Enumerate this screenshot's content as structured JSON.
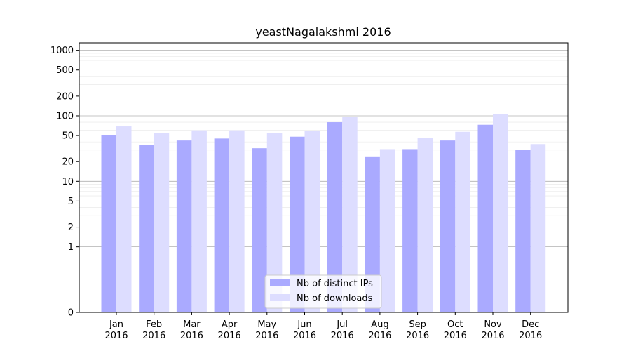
{
  "chart_data": {
    "type": "bar",
    "title": "yeastNagalakshmi 2016",
    "xlabel": "",
    "ylabel": "",
    "yscale": "symlog",
    "ylim": [
      0,
      1300
    ],
    "categories": [
      [
        "Jan",
        "2016"
      ],
      [
        "Feb",
        "2016"
      ],
      [
        "Mar",
        "2016"
      ],
      [
        "Apr",
        "2016"
      ],
      [
        "May",
        "2016"
      ],
      [
        "Jun",
        "2016"
      ],
      [
        "Jul",
        "2016"
      ],
      [
        "Aug",
        "2016"
      ],
      [
        "Sep",
        "2016"
      ],
      [
        "Oct",
        "2016"
      ],
      [
        "Nov",
        "2016"
      ],
      [
        "Dec",
        "2016"
      ]
    ],
    "yticks": [
      0,
      1,
      2,
      5,
      10,
      20,
      50,
      100,
      200,
      500,
      1000
    ],
    "ytick_labels": [
      "0",
      "1",
      "2",
      "5",
      "10",
      "20",
      "50",
      "100",
      "200",
      "500",
      "1000"
    ],
    "series": [
      {
        "name": "Nb of distinct IPs",
        "color": "#aaaaff",
        "values": [
          51,
          36,
          42,
          45,
          32,
          48,
          80,
          24,
          31,
          42,
          73,
          30
        ]
      },
      {
        "name": "Nb of downloads",
        "color": "#ddddff",
        "values": [
          69,
          55,
          60,
          60,
          54,
          59,
          96,
          31,
          46,
          57,
          107,
          37
        ]
      }
    ],
    "grid": true,
    "legend_position": "lower-center"
  }
}
